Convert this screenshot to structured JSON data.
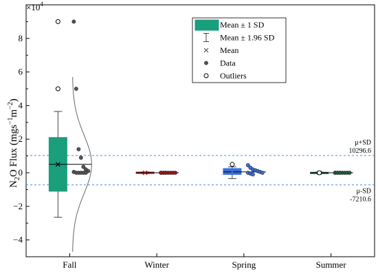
{
  "chart_data": {
    "type": "box",
    "ylabel_main": "N",
    "ylabel_sub": "2",
    "ylabel_rest": "O Flux (mgs",
    "ylabel_sup1": "−1",
    "ylabel_m": "m",
    "ylabel_sup2": "−2",
    "ylabel_close": ")",
    "y_exponent_base": "×10",
    "y_exponent_power": "4",
    "y_scale": 10000,
    "ylim": [
      -5,
      10
    ],
    "yticks": [
      -4,
      -2,
      0,
      2,
      4,
      6,
      8
    ],
    "ytick_labels": [
      "−4",
      "−2",
      "0",
      "2",
      "4",
      "6",
      "8"
    ],
    "categories": [
      "Fall",
      "Winter",
      "Spring",
      "Summer"
    ],
    "groups": [
      {
        "name": "Fall",
        "color": "#1a9e7c",
        "box_low": -1.1,
        "box_high": 2.1,
        "mean": 0.5,
        "whisker_low": -2.65,
        "whisker_high": 3.65,
        "outliers": [
          9.0,
          5.0
        ],
        "data_points": [
          9.0,
          5.0,
          1.4,
          0.9,
          0.35,
          0.2,
          0.1,
          0.05,
          0.0,
          0.0,
          0.0,
          0.0,
          0.0
        ],
        "curve_top": 5.7,
        "curve_bottom": -4.7
      },
      {
        "name": "Winter",
        "color": "#a01414",
        "box_low": -0.04,
        "box_high": 0.04,
        "mean": 0.0,
        "whisker_low": -0.05,
        "whisker_high": 0.05,
        "outliers": [],
        "data_points": [
          0.0,
          0.0,
          0.0,
          0.0,
          0.0,
          0.0,
          0.0,
          0.0,
          0.0,
          0.0
        ]
      },
      {
        "name": "Spring",
        "color": "#3a6fd8",
        "box_low": -0.1,
        "box_high": 0.25,
        "mean": 0.05,
        "whisker_low": -0.35,
        "whisker_high": 0.35,
        "outliers": [
          0.5
        ],
        "data_points": [
          0.45,
          0.3,
          0.2,
          0.15,
          0.1,
          0.05,
          0.0,
          0.0,
          -0.05,
          -0.1
        ]
      },
      {
        "name": "Summer",
        "color": "#1f5e3a",
        "box_low": -0.03,
        "box_high": 0.03,
        "mean": 0.0,
        "whisker_low": -0.04,
        "whisker_high": 0.04,
        "outliers": [
          0.0
        ],
        "data_points": [
          0.0,
          0.0,
          0.0,
          0.0,
          0.0,
          0.0,
          0.0,
          0.0,
          0.0,
          0.0
        ]
      }
    ],
    "reference_lines": [
      {
        "value": 1.02966,
        "label_top": "μ+SD",
        "label_bottom": "10296.6"
      },
      {
        "value": -0.72106,
        "label_top": "μ-SD",
        "label_bottom": "-7210.6"
      }
    ],
    "overall_mean": 0.0,
    "legend": [
      {
        "label": "Mean ± 1 SD",
        "symbol": "box"
      },
      {
        "label": "Mean ± 1.96 SD",
        "symbol": "whisker"
      },
      {
        "label": "Mean",
        "symbol": "x"
      },
      {
        "label": "Data",
        "symbol": "filled-dot"
      },
      {
        "label": "Outliers",
        "symbol": "open-dot"
      }
    ],
    "legend_position": "top-center",
    "grid": false
  }
}
